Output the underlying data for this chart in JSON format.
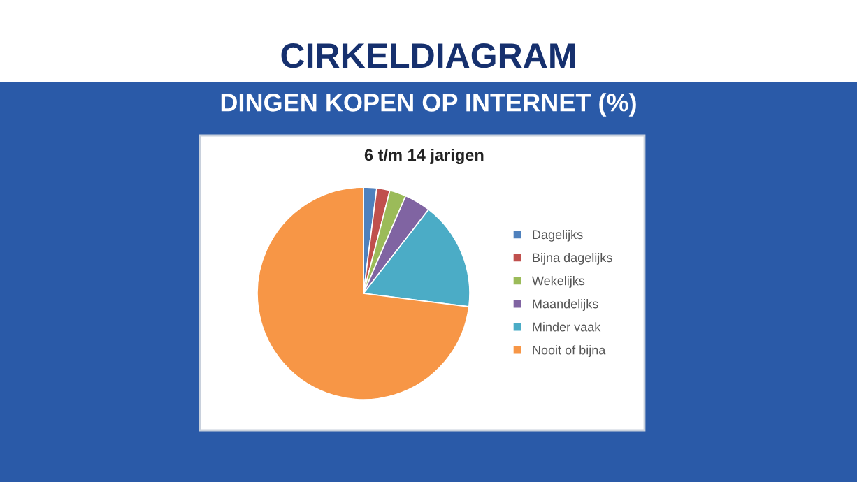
{
  "chart_data": {
    "type": "pie",
    "title": "CIRKELDIAGRAM",
    "subtitle": "DINGEN KOPEN OP INTERNET (%)",
    "annotations": [
      "6 t/m 14 jarigen"
    ],
    "categories": [
      "Dagelijks",
      "Bijna dagelijks",
      "Wekelijks",
      "Maandelijks",
      "Minder vaak",
      "Nooit of bijna"
    ],
    "values": [
      2,
      2,
      2.5,
      4,
      16.5,
      73
    ],
    "colors": [
      "#4f81bd",
      "#c0504d",
      "#9bbb59",
      "#8064a2",
      "#4bacc6",
      "#f79646"
    ],
    "legend": "right"
  }
}
